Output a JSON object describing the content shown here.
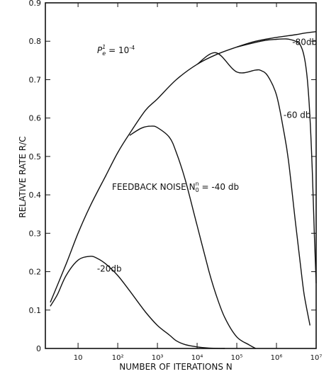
{
  "chart_data": {
    "type": "line",
    "xscale": "log",
    "xlim": [
      1.5,
      10000000
    ],
    "ylim": [
      0,
      0.9
    ],
    "xlabel": "NUMBER OF ITERATIONS N",
    "ylabel": "RELATIVE RATE R/C",
    "x_ticks": [
      {
        "value": 10,
        "label": "10"
      },
      {
        "value": 100,
        "label": "10²"
      },
      {
        "value": 1000,
        "label": "10³"
      },
      {
        "value": 10000,
        "label": "10⁴"
      },
      {
        "value": 100000,
        "label": "10⁵"
      },
      {
        "value": 1000000,
        "label": "10⁶"
      },
      {
        "value": 10000000,
        "label": "10⁷"
      }
    ],
    "y_ticks": [
      {
        "value": 0,
        "label": "0"
      },
      {
        "value": 0.1,
        "label": "0.1"
      },
      {
        "value": 0.2,
        "label": "0.2"
      },
      {
        "value": 0.3,
        "label": "0.3"
      },
      {
        "value": 0.4,
        "label": "0.4"
      },
      {
        "value": 0.5,
        "label": "0.5"
      },
      {
        "value": 0.6,
        "label": "0.6"
      },
      {
        "value": 0.7,
        "label": "0.7"
      },
      {
        "value": 0.8,
        "label": "0.8"
      },
      {
        "value": 0.9,
        "label": "0.9"
      }
    ],
    "annotations": {
      "pe_prefix": "P",
      "pe_sub": "e",
      "pe_sup": "1",
      "pe_eq": " = 10",
      "pe_exp": "-4",
      "feedback_prefix": "FEEDBACK  NOISE  N",
      "feedback_sub": "0",
      "feedback_sup": "n",
      "feedback_eq": " = -40 db"
    },
    "series": [
      {
        "name": "-80db",
        "x": [
          2,
          5,
          10,
          20,
          50,
          100,
          200,
          500,
          1000,
          3000,
          10000,
          30000,
          100000,
          300000,
          1000000,
          3000000,
          5000000,
          10000000
        ],
        "y": [
          0.12,
          0.22,
          0.3,
          0.37,
          0.45,
          0.51,
          0.56,
          0.62,
          0.65,
          0.7,
          0.74,
          0.765,
          0.785,
          0.8,
          0.81,
          0.817,
          0.821,
          0.825
        ]
      },
      {
        "name": "-60db",
        "x": [
          100000,
          300000,
          600000,
          1000000,
          1800000,
          2500000,
          3000000,
          4000000,
          5000000,
          6000000,
          7000000,
          8000000,
          9000000,
          10000000
        ],
        "y": [
          0.785,
          0.797,
          0.803,
          0.805,
          0.806,
          0.803,
          0.8,
          0.79,
          0.76,
          0.7,
          0.6,
          0.46,
          0.3,
          0.17
        ]
      },
      {
        "name": "-40db",
        "x": [
          10000,
          30000,
          100000,
          300000,
          400000,
          600000,
          1000000,
          1500000,
          2000000,
          3000000,
          4000000,
          5000000,
          7000000
        ],
        "y": [
          0.74,
          0.77,
          0.72,
          0.725,
          0.724,
          0.71,
          0.66,
          0.57,
          0.49,
          0.33,
          0.22,
          0.14,
          0.06
        ]
      },
      {
        "name": "-20db",
        "x": [
          200,
          400,
          700,
          1000,
          2000,
          3000,
          5000,
          10000,
          20000,
          30000,
          50000,
          100000,
          200000,
          300000
        ],
        "y": [
          0.555,
          0.574,
          0.579,
          0.575,
          0.55,
          0.51,
          0.44,
          0.32,
          0.2,
          0.14,
          0.08,
          0.03,
          0.01,
          0.0
        ]
      },
      {
        "name": "-20db-rise",
        "x": [
          2,
          3,
          5,
          10,
          20,
          30,
          50,
          100,
          200,
          500,
          1000,
          2000,
          3000,
          5000,
          10000,
          20000,
          50000
        ],
        "y": [
          0.11,
          0.14,
          0.19,
          0.23,
          0.24,
          0.235,
          0.22,
          0.19,
          0.15,
          0.095,
          0.06,
          0.035,
          0.02,
          0.01,
          0.004,
          0.001,
          0.0
        ]
      }
    ],
    "curve_labels": [
      {
        "text": "-80db",
        "x": 2500000,
        "y": 0.79
      },
      {
        "text": "-60 db",
        "x": 1500000,
        "y": 0.6
      },
      {
        "text": "-20db",
        "x": 30,
        "y": 0.2
      }
    ]
  }
}
